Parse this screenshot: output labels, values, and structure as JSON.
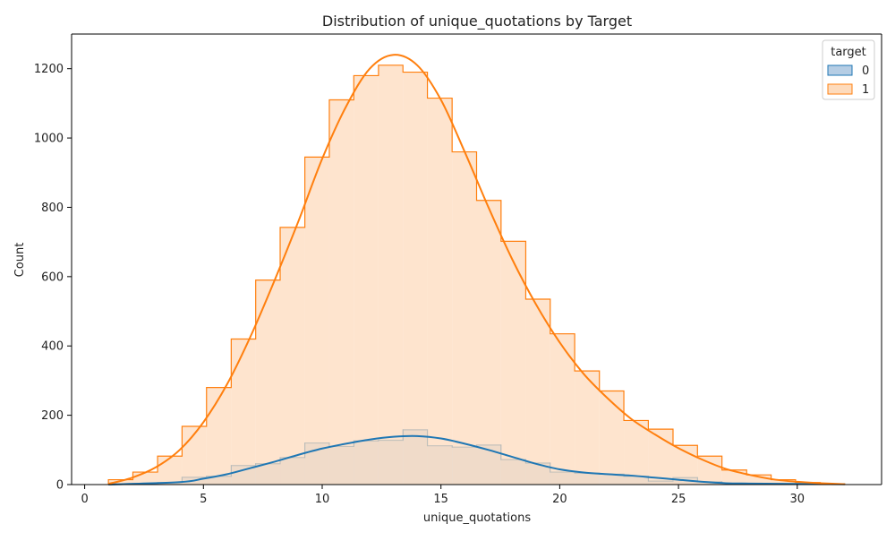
{
  "chart_data": {
    "type": "histogram",
    "title": "Distribution of unique_quotations by Target",
    "xlabel": "unique_quotations",
    "ylabel": "Count",
    "xlim": [
      -0.55,
      33.55
    ],
    "ylim": [
      0,
      1300
    ],
    "x_ticks": [
      0,
      5,
      10,
      15,
      20,
      25,
      30
    ],
    "y_ticks": [
      0,
      200,
      400,
      600,
      800,
      1000,
      1200
    ],
    "bin_edges": [
      1,
      2.03,
      3.07,
      4.1,
      5.13,
      6.17,
      7.2,
      8.23,
      9.27,
      10.3,
      11.33,
      12.37,
      13.4,
      14.43,
      15.47,
      16.5,
      17.53,
      18.57,
      19.6,
      20.63,
      21.67,
      22.7,
      23.73,
      24.77,
      25.8,
      26.83,
      27.87,
      28.9,
      29.93,
      30.97,
      32
    ],
    "legend": {
      "title": "target",
      "position": "top-right",
      "entries": [
        "0",
        "1"
      ]
    },
    "series": [
      {
        "name": "0",
        "color": "#1f77b4",
        "fill": "#b5cde4",
        "counts": [
          2,
          3,
          6,
          21,
          24,
          55,
          60,
          78,
          120,
          110,
          126,
          128,
          158,
          112,
          108,
          114,
          72,
          62,
          36,
          33,
          30,
          24,
          10,
          20,
          8,
          4,
          3,
          2,
          2,
          1
        ],
        "kde": [
          [
            1,
            0
          ],
          [
            4,
            7
          ],
          [
            5,
            17
          ],
          [
            6,
            30
          ],
          [
            7,
            48
          ],
          [
            8,
            66
          ],
          [
            9,
            86
          ],
          [
            10,
            104
          ],
          [
            11,
            118
          ],
          [
            12,
            130
          ],
          [
            13,
            138
          ],
          [
            14,
            140
          ],
          [
            15,
            133
          ],
          [
            16,
            118
          ],
          [
            17,
            100
          ],
          [
            18,
            80
          ],
          [
            19,
            60
          ],
          [
            20,
            44
          ],
          [
            21,
            35
          ],
          [
            22,
            30
          ],
          [
            23,
            26
          ],
          [
            24,
            20
          ],
          [
            25,
            14
          ],
          [
            26,
            8
          ],
          [
            27,
            4
          ],
          [
            28,
            3
          ],
          [
            30,
            2
          ],
          [
            32,
            1
          ]
        ]
      },
      {
        "name": "1",
        "color": "#ff7f0e",
        "fill": "#fddbbd",
        "counts": [
          14,
          36,
          82,
          168,
          280,
          420,
          590,
          742,
          945,
          1110,
          1180,
          1210,
          1190,
          1115,
          960,
          820,
          702,
          535,
          435,
          328,
          270,
          185,
          160,
          113,
          82,
          42,
          28,
          14,
          6,
          2
        ],
        "kde": [
          [
            1,
            2
          ],
          [
            2,
            20
          ],
          [
            3,
            50
          ],
          [
            4,
            100
          ],
          [
            5,
            180
          ],
          [
            6,
            290
          ],
          [
            7,
            430
          ],
          [
            8,
            590
          ],
          [
            9,
            760
          ],
          [
            10,
            940
          ],
          [
            11,
            1090
          ],
          [
            12,
            1200
          ],
          [
            13,
            1240
          ],
          [
            14,
            1210
          ],
          [
            15,
            1110
          ],
          [
            16,
            960
          ],
          [
            17,
            800
          ],
          [
            18,
            650
          ],
          [
            19,
            520
          ],
          [
            20,
            410
          ],
          [
            21,
            320
          ],
          [
            22,
            250
          ],
          [
            23,
            190
          ],
          [
            24,
            145
          ],
          [
            25,
            105
          ],
          [
            26,
            72
          ],
          [
            27,
            45
          ],
          [
            28,
            28
          ],
          [
            29,
            15
          ],
          [
            30,
            8
          ],
          [
            31,
            4
          ],
          [
            32,
            1
          ]
        ]
      }
    ]
  }
}
